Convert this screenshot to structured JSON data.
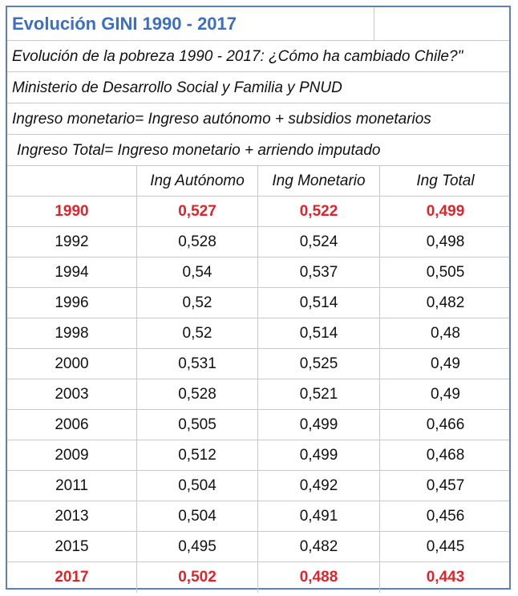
{
  "title": "Evolución GINI 1990 - 2017",
  "notes": [
    "Evolución de la pobreza 1990 - 2017: ¿Cómo ha cambiado Chile?\"",
    "Ministerio de Desarrollo Social y Familia y PNUD",
    "Ingreso monetario= Ingreso autónomo + subsidios monetarios",
    "Ingreso Total= Ingreso monetario + arriendo imputado"
  ],
  "columns": [
    "",
    "Ing Autónomo",
    "Ing Monetario",
    "Ing Total"
  ],
  "highlight_color": "#e0232b",
  "rows": [
    {
      "year": "1990",
      "autonomo": "0,527",
      "monetario": "0,522",
      "total": "0,499",
      "highlight": true
    },
    {
      "year": "1992",
      "autonomo": "0,528",
      "monetario": "0,524",
      "total": "0,498"
    },
    {
      "year": "1994",
      "autonomo": "0,54",
      "monetario": "0,537",
      "total": "0,505"
    },
    {
      "year": "1996",
      "autonomo": "0,52",
      "monetario": "0,514",
      "total": "0,482"
    },
    {
      "year": "1998",
      "autonomo": "0,52",
      "monetario": "0,514",
      "total": "0,48"
    },
    {
      "year": "2000",
      "autonomo": "0,531",
      "monetario": "0,525",
      "total": "0,49"
    },
    {
      "year": "2003",
      "autonomo": "0,528",
      "monetario": "0,521",
      "total": "0,49"
    },
    {
      "year": "2006",
      "autonomo": "0,505",
      "monetario": "0,499",
      "total": "0,466"
    },
    {
      "year": "2009",
      "autonomo": "0,512",
      "monetario": "0,499",
      "total": "0,468"
    },
    {
      "year": "2011",
      "autonomo": "0,504",
      "monetario": "0,492",
      "total": "0,457"
    },
    {
      "year": "2013",
      "autonomo": "0,504",
      "monetario": "0,491",
      "total": "0,456"
    },
    {
      "year": "2015",
      "autonomo": "0,495",
      "monetario": "0,482",
      "total": "0,445"
    },
    {
      "year": "2017",
      "autonomo": "0,502",
      "monetario": "0,488",
      "total": "0,443",
      "highlight": true
    }
  ]
}
